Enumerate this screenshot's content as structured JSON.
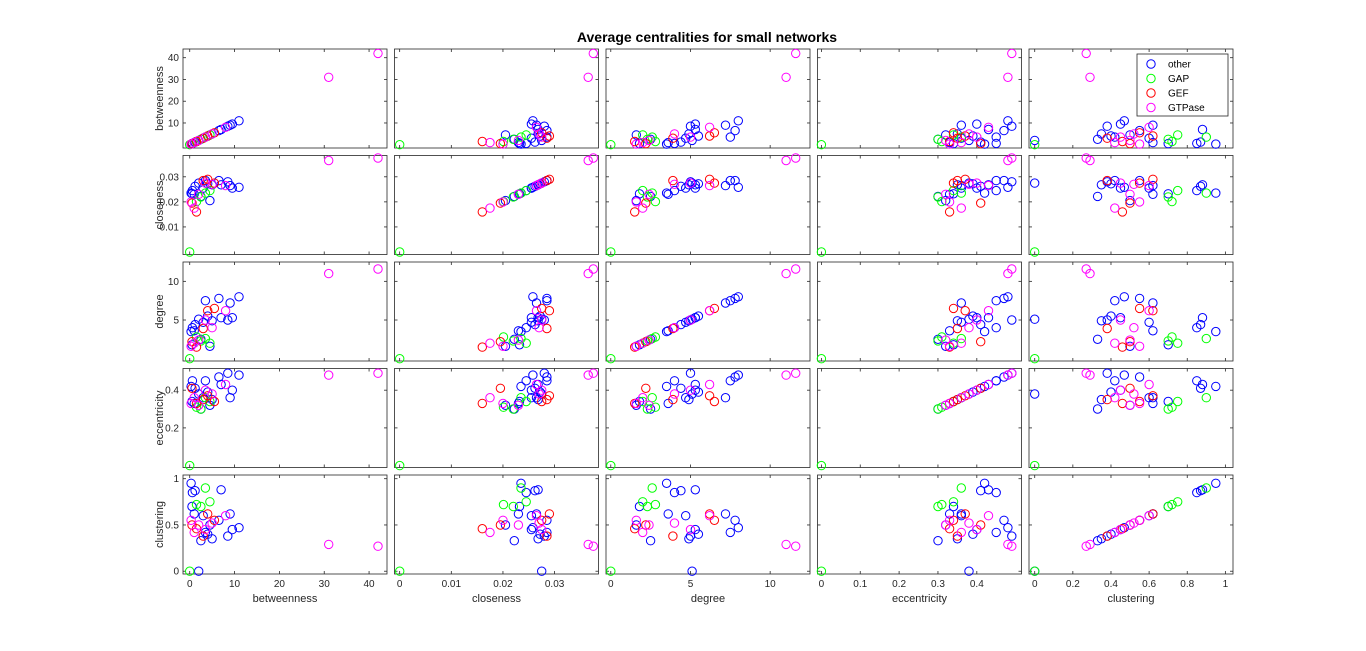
{
  "chart_data": {
    "type": "scatter",
    "title": "Average centralities for small networks",
    "variables": [
      "betweenness",
      "closeness",
      "degree",
      "eccentricity",
      "clustering"
    ],
    "ranges": {
      "betweenness": [
        -1.5,
        44
      ],
      "closeness": [
        -0.001,
        0.0385
      ],
      "degree": [
        -0.3,
        12.5
      ],
      "eccentricity": [
        -0.01,
        0.515
      ],
      "clustering": [
        -0.03,
        1.04
      ]
    },
    "ticks": {
      "betweenness": [
        0,
        10,
        20,
        30,
        40
      ],
      "closeness": [
        0,
        0.01,
        0.02,
        0.03
      ],
      "degree": [
        0,
        5,
        10
      ],
      "eccentricity": [
        0,
        0.1,
        0.2,
        0.3,
        0.4
      ],
      "clustering": [
        0,
        0.2,
        0.4,
        0.6,
        0.8,
        1
      ]
    },
    "y_ticks": {
      "betweenness": [
        10,
        20,
        30,
        40
      ],
      "closeness": [
        0.01,
        0.02,
        0.03
      ],
      "degree": [
        5,
        10
      ],
      "eccentricity": [
        0.2,
        0.4
      ],
      "clustering": [
        0,
        0.5,
        1
      ]
    },
    "tick_labels": {
      "betweenness": [
        "0",
        "10",
        "20",
        "30",
        "40"
      ],
      "closeness": [
        "0",
        "0.01",
        "0.02",
        "0.03"
      ],
      "degree": [
        "0",
        "5",
        "10"
      ],
      "eccentricity": [
        "0",
        "0.1",
        "0.2",
        "0.3",
        "0.4"
      ],
      "clustering": [
        "0",
        "0.2",
        "0.4",
        "0.6",
        "0.8",
        "1"
      ]
    },
    "y_tick_labels": {
      "betweenness": [
        "10",
        "20",
        "30",
        "40"
      ],
      "closeness": [
        "0.01",
        "0.02",
        "0.03"
      ],
      "degree": [
        "5",
        "10"
      ],
      "eccentricity": [
        "0.2",
        "0.4"
      ],
      "clustering": [
        "0",
        "0.5",
        "1"
      ]
    },
    "legend": {
      "placement": "top-right of top-right panel",
      "entries": [
        "other",
        "GAP",
        "GEF",
        "GTPase"
      ]
    },
    "colors": {
      "other": "#0000ff",
      "GAP": "#00ff00",
      "GEF": "#ff0000",
      "GTPase": "#ff00ff"
    },
    "grid": false,
    "series": [
      {
        "name": "other",
        "points": [
          [
            0.3,
            0.0235,
            3.5,
            0.42,
            0.95
          ],
          [
            0.6,
            0.0245,
            4.0,
            0.45,
            0.85
          ],
          [
            1.2,
            0.0262,
            4.4,
            0.41,
            0.87
          ],
          [
            2.0,
            0.0275,
            5.1,
            0.38,
            0.0
          ],
          [
            3.0,
            0.0255,
            4.7,
            0.36,
            0.6
          ],
          [
            4.0,
            0.0272,
            5.5,
            0.39,
            0.4
          ],
          [
            5.0,
            0.0268,
            4.9,
            0.35,
            0.35
          ],
          [
            6.5,
            0.0285,
            7.8,
            0.47,
            0.55
          ],
          [
            8.5,
            0.028,
            5.0,
            0.49,
            0.38
          ],
          [
            9.5,
            0.0255,
            5.3,
            0.4,
            0.45
          ],
          [
            11.0,
            0.0258,
            8.0,
            0.48,
            0.47
          ],
          [
            1.0,
            0.023,
            3.6,
            0.33,
            0.62
          ],
          [
            2.5,
            0.0222,
            2.5,
            0.3,
            0.33
          ],
          [
            4.5,
            0.0205,
            1.6,
            0.32,
            0.5
          ],
          [
            7.0,
            0.0268,
            5.3,
            0.43,
            0.88
          ],
          [
            9.0,
            0.0265,
            7.2,
            0.36,
            0.62
          ],
          [
            0.5,
            0.0232,
            1.8,
            0.34,
            0.7
          ],
          [
            3.5,
            0.0285,
            7.5,
            0.45,
            0.42
          ]
        ]
      },
      {
        "name": "GAP",
        "points": [
          [
            0.0,
            0.0,
            0.0,
            0.0,
            0.0
          ],
          [
            1.5,
            0.0201,
            2.8,
            0.31,
            0.72
          ],
          [
            2.5,
            0.022,
            2.3,
            0.3,
            0.7
          ],
          [
            3.5,
            0.0235,
            2.6,
            0.36,
            0.9
          ],
          [
            4.5,
            0.0245,
            2.0,
            0.34,
            0.75
          ]
        ]
      },
      {
        "name": "GEF",
        "points": [
          [
            0.5,
            0.0195,
            2.2,
            0.41,
            0.5
          ],
          [
            1.5,
            0.016,
            1.5,
            0.33,
            0.46
          ],
          [
            3.0,
            0.0285,
            3.9,
            0.35,
            0.38
          ],
          [
            4.0,
            0.029,
            6.2,
            0.37,
            0.62
          ],
          [
            5.5,
            0.0275,
            6.5,
            0.34,
            0.55
          ]
        ]
      },
      {
        "name": "GTPase",
        "points": [
          [
            0.3,
            0.02,
            1.6,
            0.33,
            0.55
          ],
          [
            1.0,
            0.0175,
            2.0,
            0.36,
            0.42
          ],
          [
            2.0,
            0.023,
            2.4,
            0.32,
            0.5
          ],
          [
            3.5,
            0.0275,
            5.0,
            0.4,
            0.45
          ],
          [
            5.0,
            0.027,
            4.0,
            0.38,
            0.52
          ],
          [
            8.0,
            0.0265,
            6.2,
            0.43,
            0.6
          ],
          [
            31.0,
            0.0365,
            11.0,
            0.48,
            0.29
          ],
          [
            42.0,
            0.0375,
            11.6,
            0.49,
            0.27
          ]
        ]
      }
    ]
  }
}
